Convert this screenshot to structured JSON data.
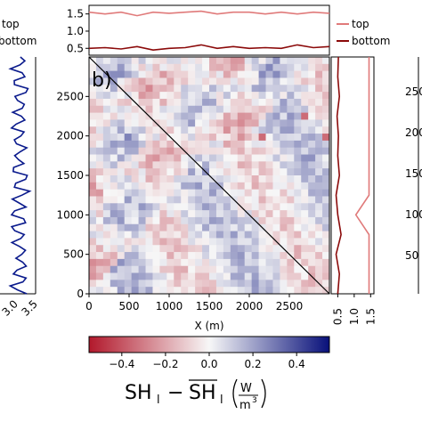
{
  "chart_data": [
    {
      "type": "heatmap",
      "panel_label": "b)",
      "xlabel": "X (m)",
      "ylabel": "",
      "xlim": [
        0,
        3000
      ],
      "ylim": [
        0,
        3000
      ],
      "x_ticks": [
        0,
        500,
        1000,
        1500,
        2000,
        2500
      ],
      "x_tick_labels": [
        "0",
        "500",
        "1000",
        "1500",
        "2000",
        "2500"
      ],
      "y_ticks": [
        0,
        500,
        1000,
        1500,
        2000,
        2500
      ],
      "y_tick_labels": [
        "0",
        "500",
        "1000",
        "1500",
        "2000",
        "2500"
      ],
      "diagonal": {
        "x": [
          0,
          3000
        ],
        "y": [
          3000,
          0
        ]
      },
      "colorbar": {
        "range": [
          -0.55,
          0.55
        ],
        "ticks": [
          -0.4,
          -0.2,
          0.0,
          0.2,
          0.4
        ],
        "tick_labels": [
          "−0.4",
          "−0.2",
          "0.0",
          "0.2",
          "0.4"
        ],
        "label": "SHₗ − SHₗ (W/m³)",
        "label_parts": {
          "lhs": "SH",
          "sub": "l",
          "minus": "−",
          "rhs": "SH",
          "unit_num": "W",
          "unit_den": "m",
          "unit_exp": "3"
        },
        "colors": {
          "low": "#b2182b",
          "mid": "#f7f7f7",
          "high": "#08107a"
        }
      }
    },
    {
      "type": "line",
      "position": "top",
      "ylim": [
        0.3,
        1.75
      ],
      "y_ticks": [
        0.5,
        1.0,
        1.5
      ],
      "y_tick_labels": [
        "0.5",
        "1.0",
        "1.5"
      ],
      "x": [
        0,
        200,
        400,
        600,
        800,
        1000,
        1200,
        1400,
        1600,
        1800,
        2000,
        2200,
        2400,
        2600,
        2800,
        3000
      ],
      "series": [
        {
          "name": "top",
          "color": "#e07a7a",
          "values": [
            1.55,
            1.5,
            1.55,
            1.45,
            1.55,
            1.52,
            1.55,
            1.58,
            1.5,
            1.55,
            1.55,
            1.5,
            1.55,
            1.5,
            1.55,
            1.52
          ]
        },
        {
          "name": "bottom",
          "color": "#8b0a0a",
          "values": [
            0.5,
            0.52,
            0.48,
            0.55,
            0.45,
            0.5,
            0.52,
            0.6,
            0.5,
            0.55,
            0.5,
            0.52,
            0.5,
            0.6,
            0.52,
            0.55
          ]
        }
      ],
      "legend": {
        "placement": "right-outside"
      }
    },
    {
      "type": "line",
      "position": "right",
      "xlim": [
        0.3,
        1.6
      ],
      "x_ticks": [
        0.5,
        1.0,
        1.5
      ],
      "x_tick_labels": [
        "0.5",
        "1.0",
        "1.5"
      ],
      "y": [
        0,
        250,
        500,
        750,
        1000,
        1250,
        1500,
        1750,
        2000,
        2250,
        2500,
        2750,
        3000
      ],
      "series": [
        {
          "name": "top",
          "color": "#e07a7a",
          "values": [
            1.45,
            1.45,
            1.45,
            1.45,
            1.05,
            1.45,
            1.45,
            1.45,
            1.45,
            1.45,
            1.45,
            1.45,
            1.45
          ]
        },
        {
          "name": "bottom",
          "color": "#8b0a0a",
          "values": [
            0.5,
            0.55,
            0.45,
            0.6,
            0.5,
            0.45,
            0.55,
            0.5,
            0.52,
            0.48,
            0.55,
            0.5,
            0.52
          ]
        }
      ]
    },
    {
      "type": "line",
      "position": "left-partial",
      "x_tick_labels": [
        "3.0",
        "3.5"
      ],
      "series": [
        {
          "color": "#0a1a8c"
        }
      ]
    },
    {
      "type": "line",
      "position": "right-partial",
      "y_tick_labels": [
        "250",
        "200",
        "150",
        "100",
        "50"
      ]
    }
  ]
}
